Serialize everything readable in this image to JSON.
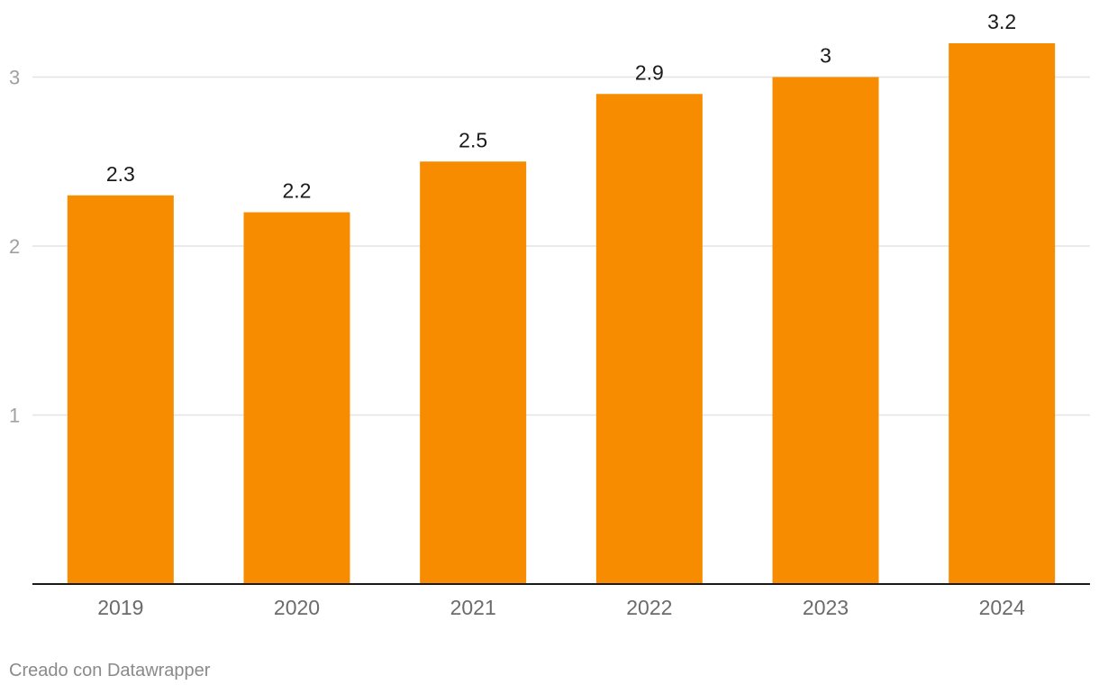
{
  "chart_data": {
    "type": "bar",
    "title": "",
    "xlabel": "",
    "ylabel": "",
    "categories": [
      "2019",
      "2020",
      "2021",
      "2022",
      "2023",
      "2024"
    ],
    "values": [
      2.3,
      2.2,
      2.5,
      2.9,
      3,
      3.2
    ],
    "value_labels": [
      "2.3",
      "2.2",
      "2.5",
      "2.9",
      "3",
      "3.2"
    ],
    "ylim": [
      0,
      3.2
    ],
    "yticks": [
      1,
      2,
      3
    ],
    "ytick_labels": [
      "1",
      "2",
      "3"
    ],
    "grid": true,
    "bar_color": "#f78c00",
    "grid_color": "#e3e3e3",
    "axis_color": "#1a1a1a"
  },
  "footer": {
    "credit": "Creado con Datawrapper"
  }
}
